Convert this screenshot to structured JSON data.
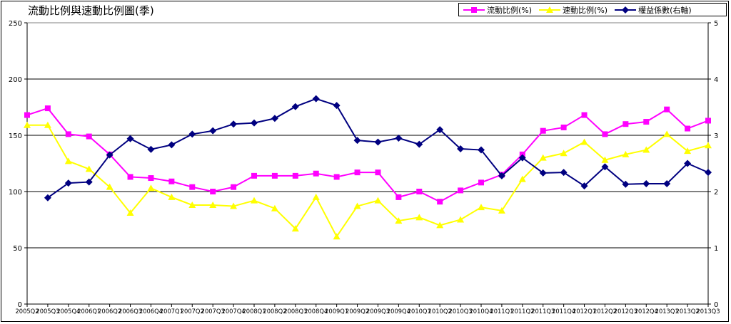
{
  "chart_data": {
    "type": "line",
    "title": "流動比例與速動比例圖(季)",
    "categories": [
      "2005Q2",
      "2005Q3",
      "2005Q4",
      "2006Q1",
      "2006Q2",
      "2006Q3",
      "2006Q4",
      "2007Q1",
      "2007Q2",
      "2007Q3",
      "2007Q4",
      "2008Q1",
      "2008Q2",
      "2008Q3",
      "2008Q4",
      "2009Q1",
      "2009Q2",
      "2009Q3",
      "2009Q4",
      "2010Q1",
      "2010Q2",
      "2010Q3",
      "2010Q4",
      "2011Q1",
      "2011Q2",
      "2011Q3",
      "2011Q4",
      "2012Q1",
      "2012Q2",
      "2012Q3",
      "2012Q4",
      "2013Q1",
      "2013Q2",
      "2013Q3"
    ],
    "ylim_left": [
      0,
      250
    ],
    "yticks_left": [
      "0",
      "50",
      "100",
      "150",
      "200",
      "250"
    ],
    "ylim_right": [
      0,
      5
    ],
    "yticks_right": [
      "0",
      "1",
      "2",
      "3",
      "4",
      "5"
    ],
    "grid": true,
    "legend_position": "top-right",
    "series": [
      {
        "name": "流動比例(%)",
        "axis": "left",
        "color": "#ff00ff",
        "marker": "square",
        "values": [
          168,
          174,
          151,
          149,
          133,
          113,
          112,
          109,
          104,
          100,
          104,
          114,
          114,
          114,
          116,
          113,
          117,
          117,
          95,
          100,
          91,
          101,
          108,
          115,
          133,
          154,
          157,
          168,
          151,
          160,
          162,
          173,
          156,
          163
        ]
      },
      {
        "name": "速動比例(%)",
        "axis": "left",
        "color": "#ffff00",
        "marker": "triangle",
        "values": [
          159,
          159,
          127,
          120,
          104,
          81,
          103,
          95,
          88,
          88,
          87,
          92,
          85,
          67,
          95,
          60,
          87,
          92,
          74,
          77,
          70,
          75,
          86,
          83,
          111,
          130,
          134,
          144,
          128,
          133,
          137,
          151,
          136,
          141
        ]
      },
      {
        "name": "權益係數(右軸)",
        "axis": "right",
        "color": "#000080",
        "marker": "diamond",
        "values": [
          null,
          1.89,
          2.15,
          2.17,
          2.65,
          2.94,
          2.75,
          2.83,
          3.02,
          3.08,
          3.2,
          3.22,
          3.3,
          3.51,
          3.65,
          3.53,
          2.91,
          2.88,
          2.95,
          2.84,
          3.1,
          2.76,
          2.74,
          2.28,
          2.6,
          2.33,
          2.34,
          2.1,
          2.44,
          2.13,
          2.14,
          2.14,
          2.5,
          2.34
        ]
      }
    ]
  }
}
